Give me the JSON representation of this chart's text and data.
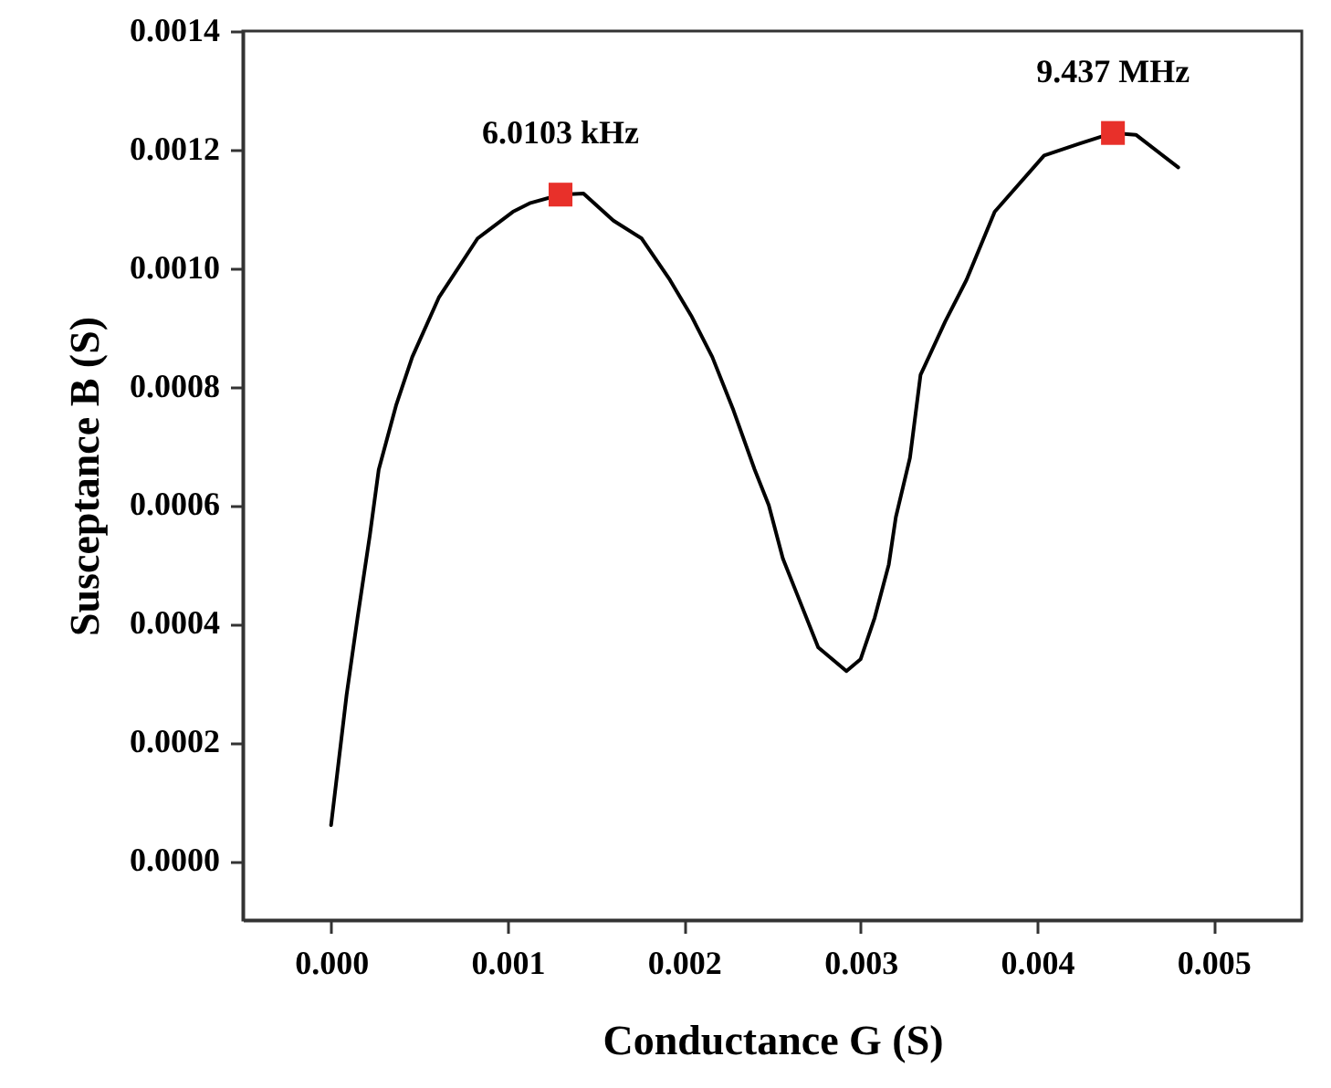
{
  "chart_data": {
    "type": "line",
    "xlabel": "Conductance G (S)",
    "ylabel": "Susceptance B (S)",
    "xlim": [
      -0.0005,
      0.0055
    ],
    "ylim": [
      -0.0001,
      0.0014
    ],
    "xticks": [
      {
        "value": 0,
        "label": "0.000"
      },
      {
        "value": 0.001,
        "label": "0.001"
      },
      {
        "value": 0.002,
        "label": "0.002"
      },
      {
        "value": 0.003,
        "label": "0.003"
      },
      {
        "value": 0.004,
        "label": "0.004"
      },
      {
        "value": 0.005,
        "label": "0.005"
      }
    ],
    "yticks": [
      {
        "value": 0,
        "label": "0.0000"
      },
      {
        "value": 0.0002,
        "label": "0.0002"
      },
      {
        "value": 0.0004,
        "label": "0.0004"
      },
      {
        "value": 0.0006,
        "label": "0.0006"
      },
      {
        "value": 0.0008,
        "label": "0.0008"
      },
      {
        "value": 0.001,
        "label": "0.0010"
      },
      {
        "value": 0.0012,
        "label": "0.0012"
      },
      {
        "value": 0.0014,
        "label": "0.0014"
      }
    ],
    "series": [
      {
        "color": "#000000",
        "marker": "none",
        "x": [
          0,
          2.8e-05,
          8.8e-05,
          0.00015,
          0.00022,
          0.00027,
          0.00037,
          0.00046,
          0.00061,
          0.00083,
          0.00103,
          0.00113,
          0.0013,
          0.00143,
          0.0016,
          0.00176,
          0.00192,
          0.00204,
          0.00216,
          0.00228,
          0.0024,
          0.00248,
          0.00256,
          0.00264,
          0.00276,
          0.00292,
          0.003,
          0.00308,
          0.00316,
          0.0032,
          0.00328,
          0.00334,
          0.00348,
          0.0036,
          0.00376,
          0.00404,
          0.00424,
          0.00443,
          0.00456,
          0.0048
        ],
        "values": [
          6e-05,
          0.00013,
          0.00028,
          0.00041,
          0.00055,
          0.00066,
          0.00077,
          0.00085,
          0.00095,
          0.00105,
          0.001095,
          0.00111,
          0.001124,
          0.001126,
          0.00108,
          0.00105,
          0.00098,
          0.00092,
          0.00085,
          0.00076,
          0.00066,
          0.0006,
          0.00051,
          0.00045,
          0.00036,
          0.00032,
          0.00034,
          0.00041,
          0.0005,
          0.00058,
          0.00068,
          0.00082,
          0.00091,
          0.00098,
          0.001095,
          0.00119,
          0.00121,
          0.001228,
          0.001225,
          0.00117
        ]
      },
      {
        "type": "scatter",
        "color": "#e8302a",
        "marker": "square",
        "x": [
          0.0013,
          0.00443
        ],
        "values": [
          0.001124,
          0.001228
        ]
      }
    ],
    "annotations": [
      {
        "text": "6.0103 kHz",
        "x": 0.0013,
        "y": 0.001124
      },
      {
        "text": "9.437 MHz",
        "x": 0.00443,
        "y": 0.001228
      }
    ]
  }
}
